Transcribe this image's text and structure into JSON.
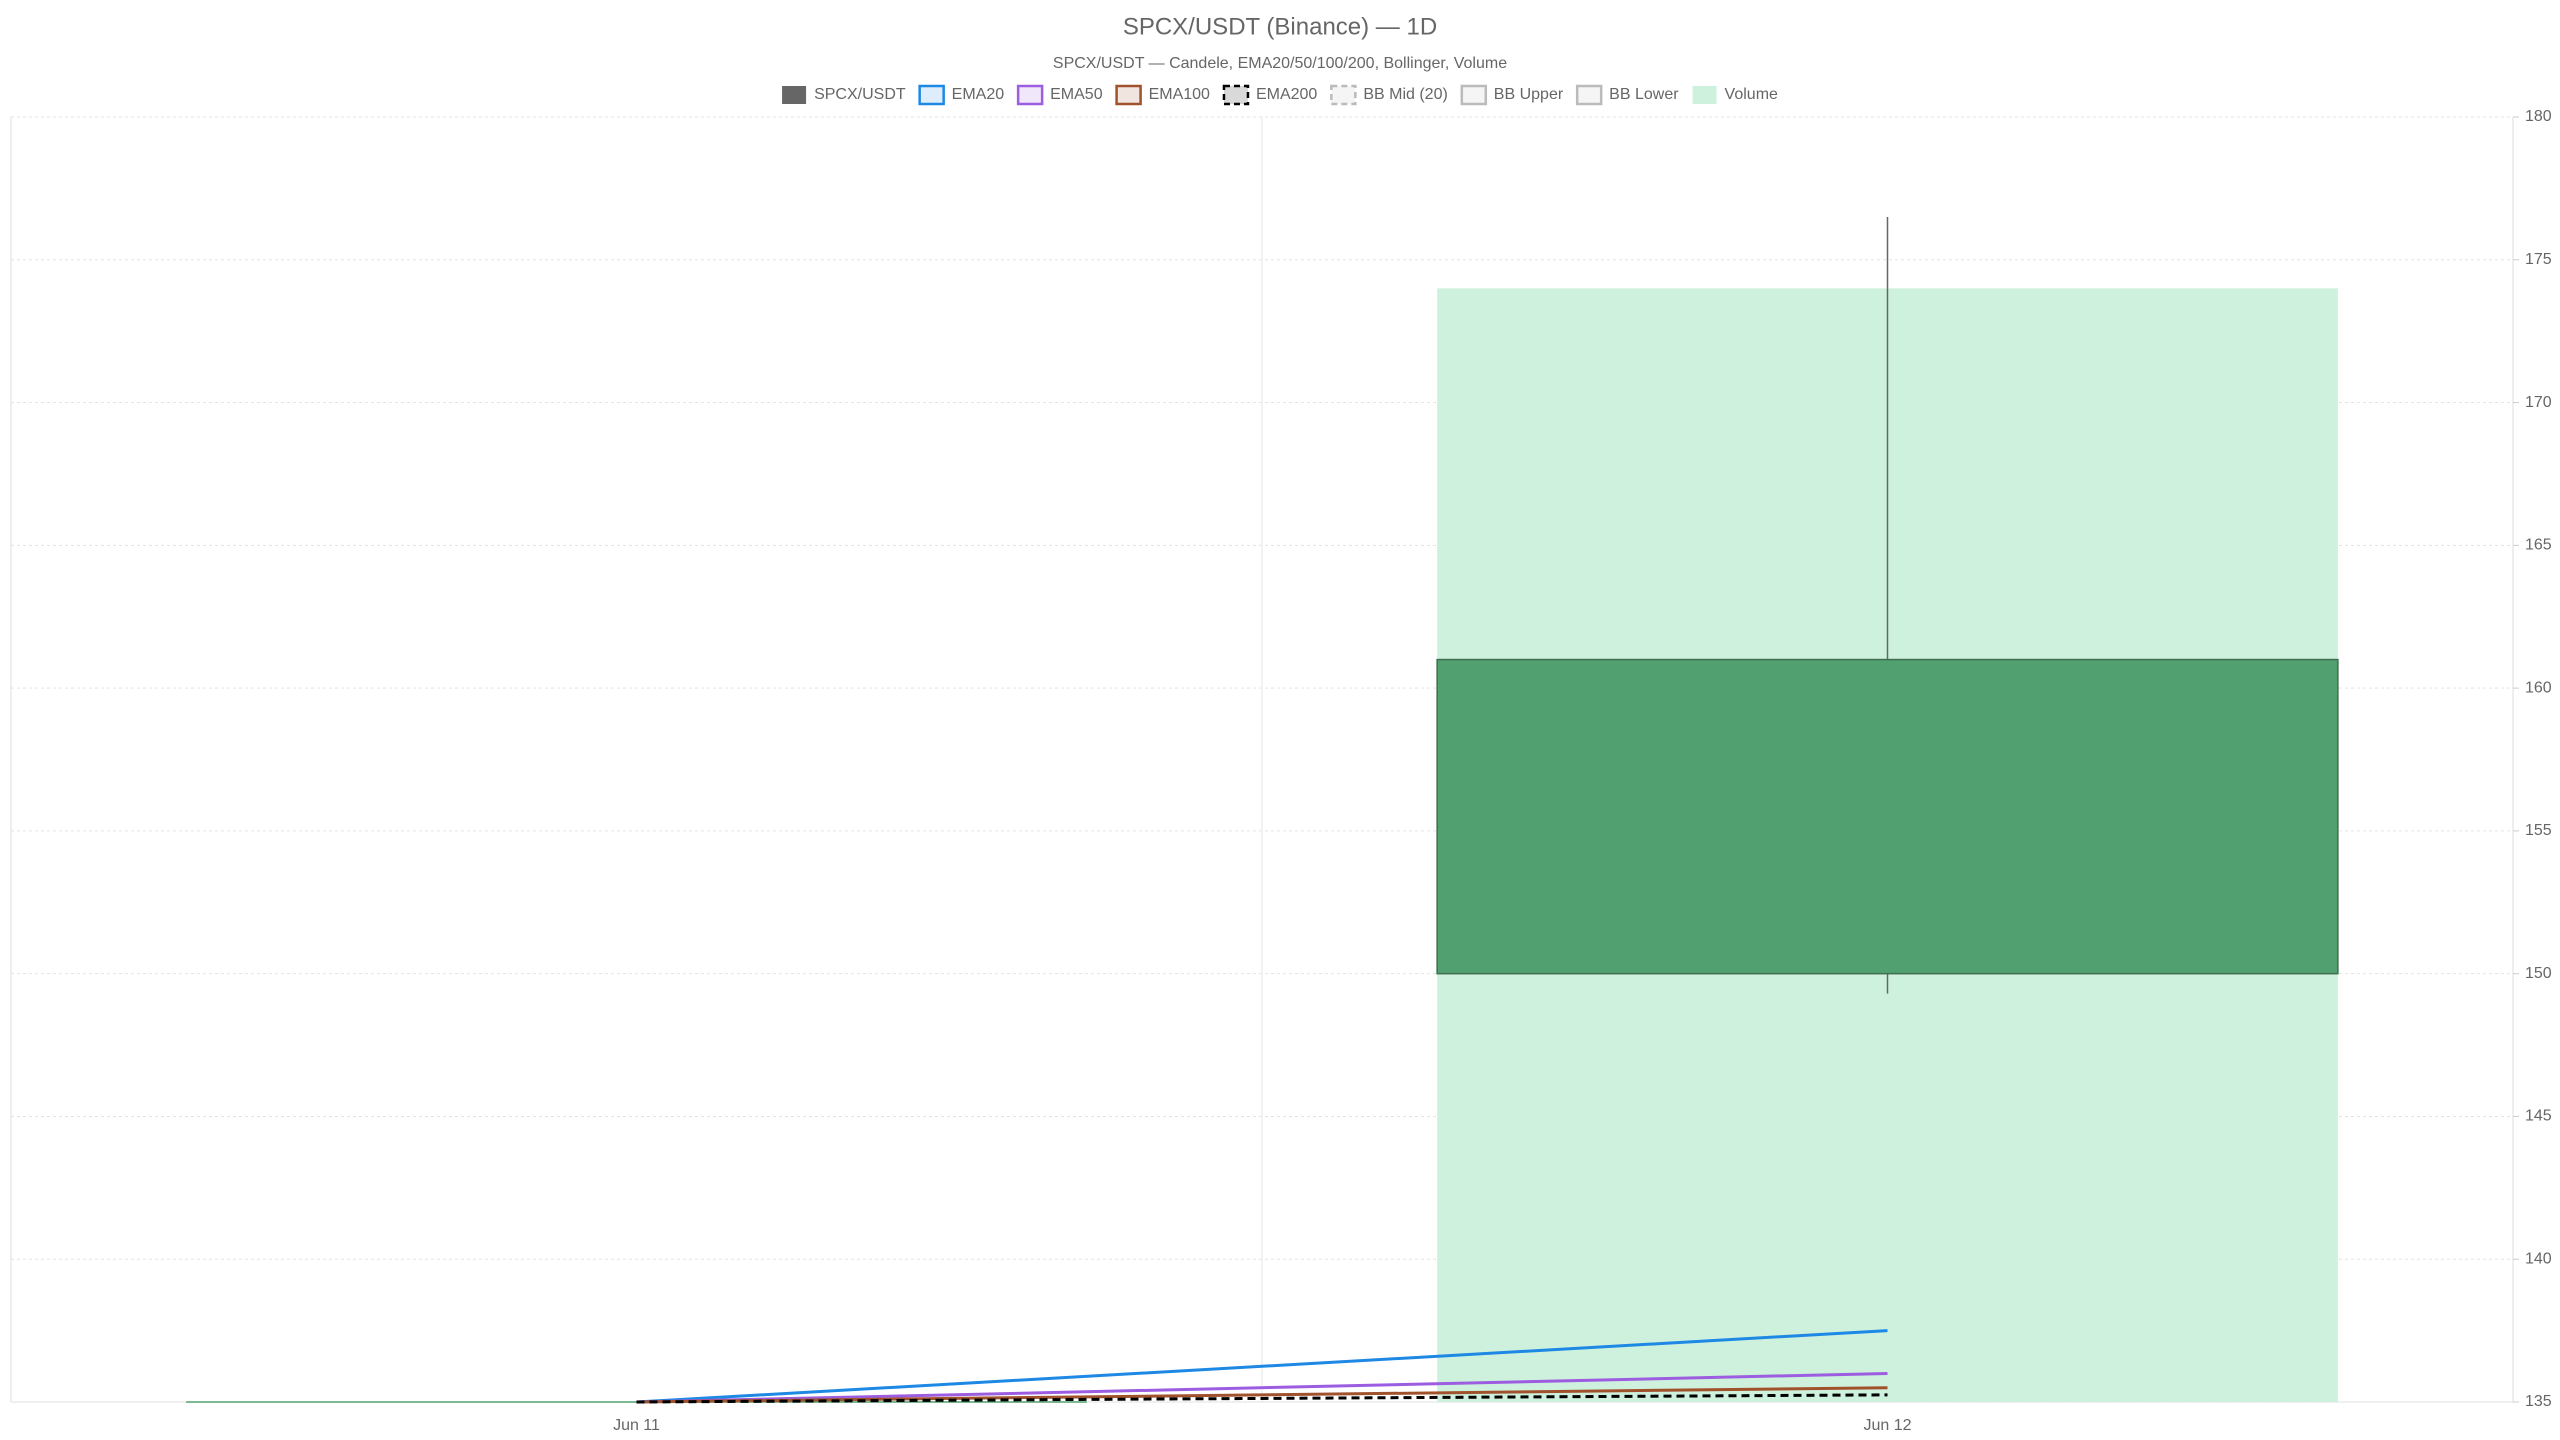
{
  "chart_data": {
    "type": "candlestick",
    "title": "SPCX/USDT (Binance) — 1D",
    "subtitle": "SPCX/USDT — Candele, EMA20/50/100/200, Bollinger, Volume",
    "categories": [
      "Jun 11",
      "Jun 12"
    ],
    "series": [
      {
        "name": "SPCX/USDT",
        "type": "candlestick",
        "color": "#51a06f",
        "open": [
          135,
          150
        ],
        "high": [
          135,
          176.5
        ],
        "low": [
          135,
          149.3
        ],
        "close": [
          135,
          161
        ]
      },
      {
        "name": "EMA20",
        "type": "line",
        "color": "#1e88e5",
        "values": [
          135,
          137.5
        ]
      },
      {
        "name": "EMA50",
        "type": "line",
        "color": "#9c5de0",
        "values": [
          135,
          136
        ]
      },
      {
        "name": "EMA100",
        "type": "line",
        "color": "#a0522d",
        "values": [
          135,
          135.5
        ]
      },
      {
        "name": "EMA200",
        "type": "line",
        "color": "#000000",
        "dash": true,
        "values": [
          135,
          135.25
        ]
      },
      {
        "name": "BB Mid (20)",
        "type": "line",
        "color": "#bbbbbb",
        "dash": true,
        "values": [
          null,
          null
        ]
      },
      {
        "name": "BB Upper",
        "type": "line",
        "color": "#bbbbbb",
        "values": [
          null,
          null
        ]
      },
      {
        "name": "BB Lower",
        "type": "line",
        "color": "#bbbbbb",
        "values": [
          null,
          null
        ]
      },
      {
        "name": "Volume",
        "type": "bar",
        "color": "#cdf1dc",
        "values": [
          null,
          174
        ]
      }
    ],
    "ylim": [
      135,
      180
    ],
    "yticks": [
      135,
      140,
      145,
      150,
      155,
      160,
      165,
      170,
      175,
      180
    ],
    "grid": true
  }
}
